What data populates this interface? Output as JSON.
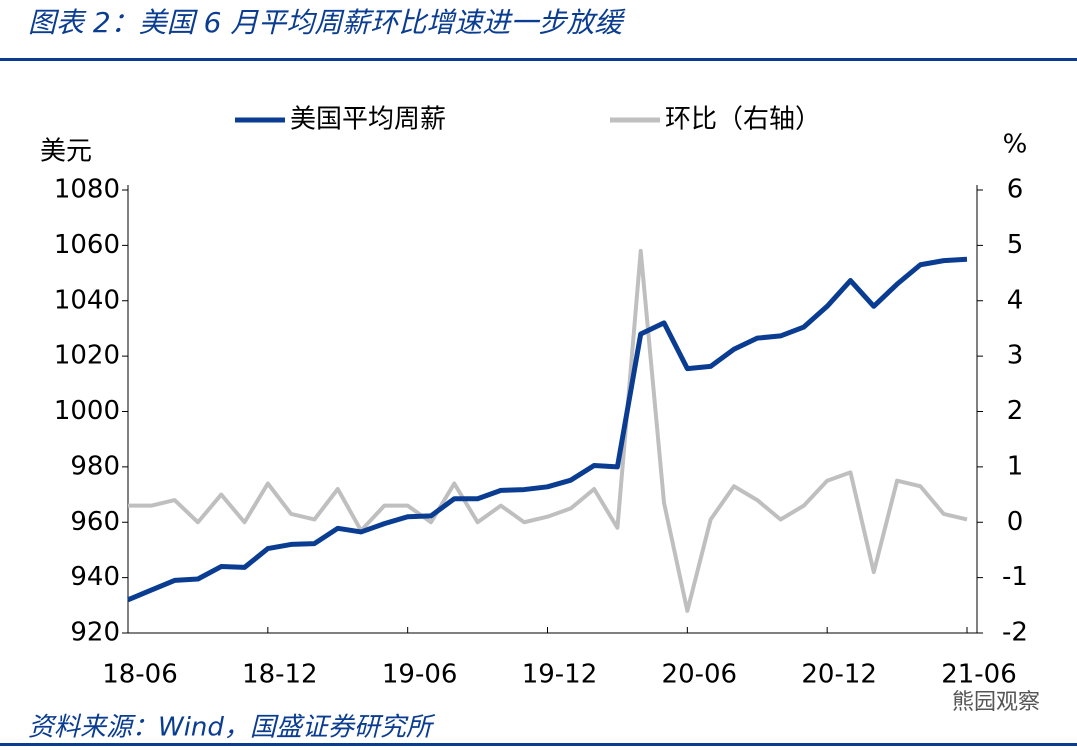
{
  "header": {
    "title": "图表 2：美国 6 月平均周薪环比增速进一步放缓"
  },
  "chart_data": {
    "type": "line",
    "y_label": "美元",
    "y2_label": "%",
    "categories": [
      "18-06",
      null,
      null,
      null,
      null,
      null,
      "18-12",
      null,
      null,
      null,
      null,
      null,
      "19-06",
      null,
      null,
      null,
      null,
      null,
      "19-12",
      null,
      null,
      null,
      null,
      null,
      "20-06",
      null,
      null,
      null,
      null,
      null,
      "20-12",
      null,
      null,
      null,
      null,
      null,
      "21-06"
    ],
    "series": [
      {
        "name": "美国平均周薪",
        "color": "#0a3d91",
        "axis": "y",
        "values": [
          932,
          935.5,
          939,
          939.5,
          944,
          943.7,
          950.5,
          952,
          952.3,
          957.8,
          956.5,
          959.5,
          962,
          962.3,
          968.5,
          968.5,
          971.5,
          971.8,
          972.8,
          975.2,
          980.5,
          980,
          1028,
          1032,
          1015.5,
          1016.3,
          1022.5,
          1026.5,
          1027.3,
          1030.5,
          1038,
          1047.3,
          1038,
          1046,
          1053,
          1054.5,
          1055
        ]
      },
      {
        "name": "环比（右轴）",
        "color": "#bfbfbf",
        "axis": "y2",
        "values": [
          0.3,
          0.3,
          0.4,
          0.0,
          0.5,
          0.0,
          0.7,
          0.15,
          0.05,
          0.6,
          -0.15,
          0.3,
          0.3,
          0.0,
          0.7,
          0.0,
          0.3,
          0.0,
          0.1,
          0.25,
          0.6,
          -0.1,
          4.9,
          0.35,
          -1.6,
          0.05,
          0.65,
          0.4,
          0.05,
          0.3,
          0.75,
          0.9,
          -0.9,
          0.75,
          0.65,
          0.15,
          0.05
        ]
      }
    ],
    "ylim": [
      920,
      1080
    ],
    "yticks": [
      920,
      940,
      960,
      980,
      1000,
      1020,
      1040,
      1060,
      1080
    ],
    "y2lim": [
      -2,
      6
    ],
    "y2ticks": [
      -2,
      -1,
      0,
      1,
      2,
      3,
      4,
      5,
      6
    ]
  },
  "footer": {
    "source": "资料来源：Wind，国盛证券研究所",
    "watermark": "熊园观察"
  }
}
